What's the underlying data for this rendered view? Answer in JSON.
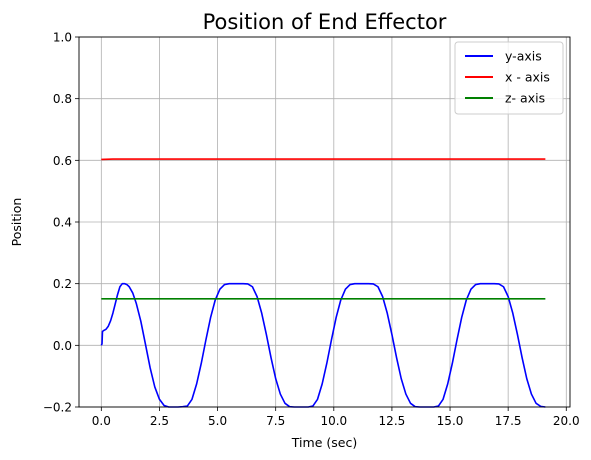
{
  "chart_data": {
    "type": "line",
    "title": "Position of End Effector",
    "xlabel": "Time (sec)",
    "ylabel": "Position",
    "xlim": [
      -0.96,
      20.16
    ],
    "ylim": [
      -0.2,
      1.0
    ],
    "x_ticks": [
      0.0,
      2.5,
      5.0,
      7.5,
      10.0,
      12.5,
      15.0,
      17.5,
      20.0
    ],
    "x_tick_labels": [
      "0.0",
      "2.5",
      "5.0",
      "7.5",
      "10.0",
      "12.5",
      "15.0",
      "17.5",
      "20.0"
    ],
    "y_ticks": [
      -0.2,
      0.0,
      0.2,
      0.4,
      0.6,
      0.8,
      1.0
    ],
    "y_tick_labels": [
      "−0.2",
      "0.0",
      "0.2",
      "0.4",
      "0.6",
      "0.8",
      "1.0"
    ],
    "grid": true,
    "legend_position": "top-right",
    "series": [
      {
        "name": "y-axis",
        "color": "#0000ff",
        "x": [
          0.0,
          0.03,
          0.05,
          0.1,
          0.2,
          0.3,
          0.4,
          0.5,
          0.6,
          0.7,
          0.8,
          0.9,
          1.0,
          1.1,
          1.2,
          1.35,
          1.5,
          1.7,
          1.9,
          2.1,
          2.3,
          2.5,
          2.7,
          2.9,
          3.1,
          3.3,
          3.5,
          3.7,
          3.9,
          4.1,
          4.3,
          4.5,
          4.7,
          4.9,
          5.1,
          5.3,
          5.5,
          5.7,
          5.9,
          6.1,
          6.3,
          6.5,
          6.7,
          6.9,
          7.1,
          7.3,
          7.5,
          7.7,
          7.9,
          8.1,
          8.3,
          8.5,
          8.7,
          8.9,
          9.1,
          9.3,
          9.5,
          9.7,
          9.9,
          10.1,
          10.3,
          10.5,
          10.7,
          10.9,
          11.1,
          11.3,
          11.5,
          11.7,
          11.9,
          12.1,
          12.3,
          12.5,
          12.7,
          12.9,
          13.1,
          13.3,
          13.5,
          13.7,
          13.9,
          14.1,
          14.3,
          14.5,
          14.7,
          14.9,
          15.1,
          15.3,
          15.5,
          15.7,
          15.9,
          16.1,
          16.3,
          16.5,
          16.7,
          16.9,
          17.1,
          17.3,
          17.5,
          17.7,
          17.9,
          18.1,
          18.3,
          18.5,
          18.7,
          18.9,
          19.1
        ],
        "y": [
          0.0,
          0.005,
          0.045,
          0.048,
          0.052,
          0.062,
          0.08,
          0.105,
          0.135,
          0.165,
          0.19,
          0.2,
          0.2,
          0.197,
          0.19,
          0.17,
          0.137,
          0.078,
          0.003,
          -0.073,
          -0.135,
          -0.175,
          -0.195,
          -0.2,
          -0.2,
          -0.2,
          -0.199,
          -0.197,
          -0.175,
          -0.125,
          -0.058,
          0.018,
          0.09,
          0.147,
          0.182,
          0.197,
          0.2,
          0.2,
          0.2,
          0.2,
          0.199,
          0.19,
          0.158,
          0.104,
          0.035,
          -0.04,
          -0.108,
          -0.158,
          -0.188,
          -0.199,
          -0.2,
          -0.2,
          -0.2,
          -0.2,
          -0.197,
          -0.175,
          -0.125,
          -0.058,
          0.018,
          0.09,
          0.147,
          0.182,
          0.197,
          0.2,
          0.2,
          0.2,
          0.2,
          0.199,
          0.19,
          0.158,
          0.104,
          0.035,
          -0.04,
          -0.108,
          -0.158,
          -0.188,
          -0.199,
          -0.2,
          -0.2,
          -0.2,
          -0.2,
          -0.197,
          -0.175,
          -0.125,
          -0.058,
          0.018,
          0.09,
          0.147,
          0.182,
          0.197,
          0.2,
          0.2,
          0.2,
          0.2,
          0.199,
          0.19,
          0.158,
          0.104,
          0.035,
          -0.04,
          -0.108,
          -0.158,
          -0.188,
          -0.198,
          -0.2
        ]
      },
      {
        "name": "x - axis",
        "color": "#ff0000",
        "x": [
          0.0,
          0.5,
          19.1
        ],
        "y": [
          0.603,
          0.604,
          0.604
        ]
      },
      {
        "name": "z- axis",
        "color": "#008000",
        "x": [
          0.0,
          19.1
        ],
        "y": [
          0.151,
          0.151
        ]
      }
    ]
  }
}
